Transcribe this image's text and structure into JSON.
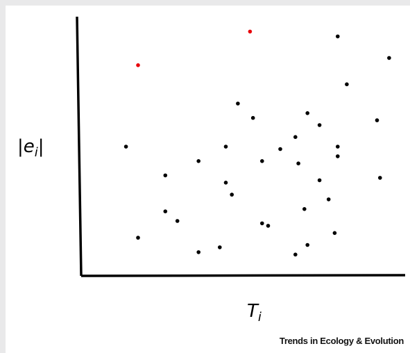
{
  "chart_data": {
    "type": "scatter",
    "title": "",
    "xlabel": {
      "var": "T",
      "sub": "i"
    },
    "ylabel": {
      "left": "|",
      "var": "e",
      "sub": "i",
      "right": "|"
    },
    "xlim": [
      0,
      100
    ],
    "ylim": [
      0,
      100
    ],
    "grid": false,
    "legend": "none",
    "ticks": false,
    "colors": {
      "normal": "#000000",
      "highlight": "#e8000b",
      "axis": "#000000"
    },
    "series": [
      {
        "points": [
          [
            10,
            51
          ],
          [
            14,
            13
          ],
          [
            23,
            39
          ],
          [
            23,
            24
          ],
          [
            27,
            20
          ],
          [
            34,
            7
          ],
          [
            34,
            45
          ],
          [
            41,
            9
          ],
          [
            43,
            51
          ],
          [
            43,
            36
          ],
          [
            45,
            31
          ],
          [
            47,
            69
          ],
          [
            52,
            63
          ],
          [
            55,
            19
          ],
          [
            55,
            45
          ],
          [
            57,
            18
          ],
          [
            61,
            50
          ],
          [
            66,
            55
          ],
          [
            66,
            6
          ],
          [
            67,
            44
          ],
          [
            69,
            25
          ],
          [
            70,
            10
          ],
          [
            70,
            65
          ],
          [
            74,
            37
          ],
          [
            74,
            60
          ],
          [
            77,
            29
          ],
          [
            79,
            15
          ],
          [
            80,
            51
          ],
          [
            80,
            47
          ],
          [
            80,
            97
          ],
          [
            83,
            77
          ],
          [
            93,
            62
          ],
          [
            94,
            38
          ],
          [
            97,
            88
          ]
        ]
      },
      {
        "highlight": true,
        "points": [
          [
            14,
            85
          ],
          [
            51,
            99
          ]
        ]
      }
    ]
  },
  "credit": "Trends in Ecology & Evolution"
}
